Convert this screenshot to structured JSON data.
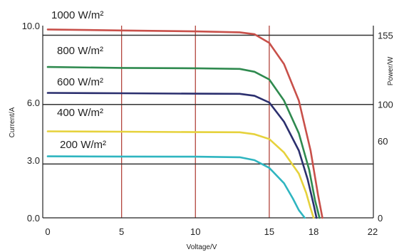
{
  "chart_data": {
    "type": "line",
    "xlabel": "Voltage/V",
    "ylabel": "Current/A",
    "y2label": "Power/W",
    "xlim": [
      0,
      22
    ],
    "ylim": [
      0,
      10
    ],
    "x_ticks": [
      "0",
      "5",
      "10",
      "15",
      "18",
      "22"
    ],
    "y_ticks": [
      "0.0",
      "3.0",
      "6.0",
      "10.0"
    ],
    "y2_ticks": [
      "0",
      "60",
      "100",
      "155"
    ],
    "y2_tick_positions_current": [
      0,
      4.0,
      5.9,
      9.5
    ],
    "vertical_grid_x": [
      5,
      10,
      15
    ],
    "horizontal_grid_y": [
      9.5,
      5.9,
      2.8
    ],
    "grid": true,
    "series": [
      {
        "name": "1000 W/m²",
        "color": "#c8504a",
        "x": [
          0,
          5,
          10,
          13,
          14,
          15,
          16,
          17,
          17.8,
          18.3,
          18.6
        ],
        "y": [
          9.8,
          9.75,
          9.7,
          9.65,
          9.55,
          9.1,
          8.0,
          6.1,
          3.5,
          1.2,
          0
        ]
      },
      {
        "name": "800 W/m²",
        "color": "#2f8a4f",
        "x": [
          0,
          5,
          10,
          13,
          14,
          15,
          16,
          17,
          17.7,
          18.1,
          18.4
        ],
        "y": [
          7.85,
          7.8,
          7.78,
          7.75,
          7.6,
          7.2,
          6.1,
          4.4,
          2.5,
          0.9,
          0
        ]
      },
      {
        "name": "600 W/m²",
        "color": "#2b2f6e",
        "x": [
          0,
          5,
          10,
          13,
          14,
          15,
          16,
          17,
          17.6,
          18.0,
          18.2
        ],
        "y": [
          6.5,
          6.48,
          6.46,
          6.45,
          6.35,
          6.0,
          5.0,
          3.5,
          2.0,
          0.7,
          0
        ]
      },
      {
        "name": "400 W/m²",
        "color": "#e6d23c",
        "x": [
          0,
          5,
          10,
          13,
          14,
          15,
          16,
          17,
          17.5,
          17.8,
          18.0
        ],
        "y": [
          4.5,
          4.48,
          4.46,
          4.45,
          4.35,
          4.1,
          3.4,
          2.3,
          1.3,
          0.5,
          0
        ]
      },
      {
        "name": "200 W/m²",
        "color": "#2fb5c0",
        "x": [
          0,
          5,
          10,
          13,
          14,
          15,
          16,
          16.6,
          17.0,
          17.4
        ],
        "y": [
          3.2,
          3.19,
          3.18,
          3.15,
          3.0,
          2.6,
          1.8,
          1.0,
          0.4,
          0
        ]
      }
    ],
    "colors": {
      "axis": "#222222",
      "grid_vertical": "#b2453d",
      "grid_horizontal": "#333333"
    }
  }
}
